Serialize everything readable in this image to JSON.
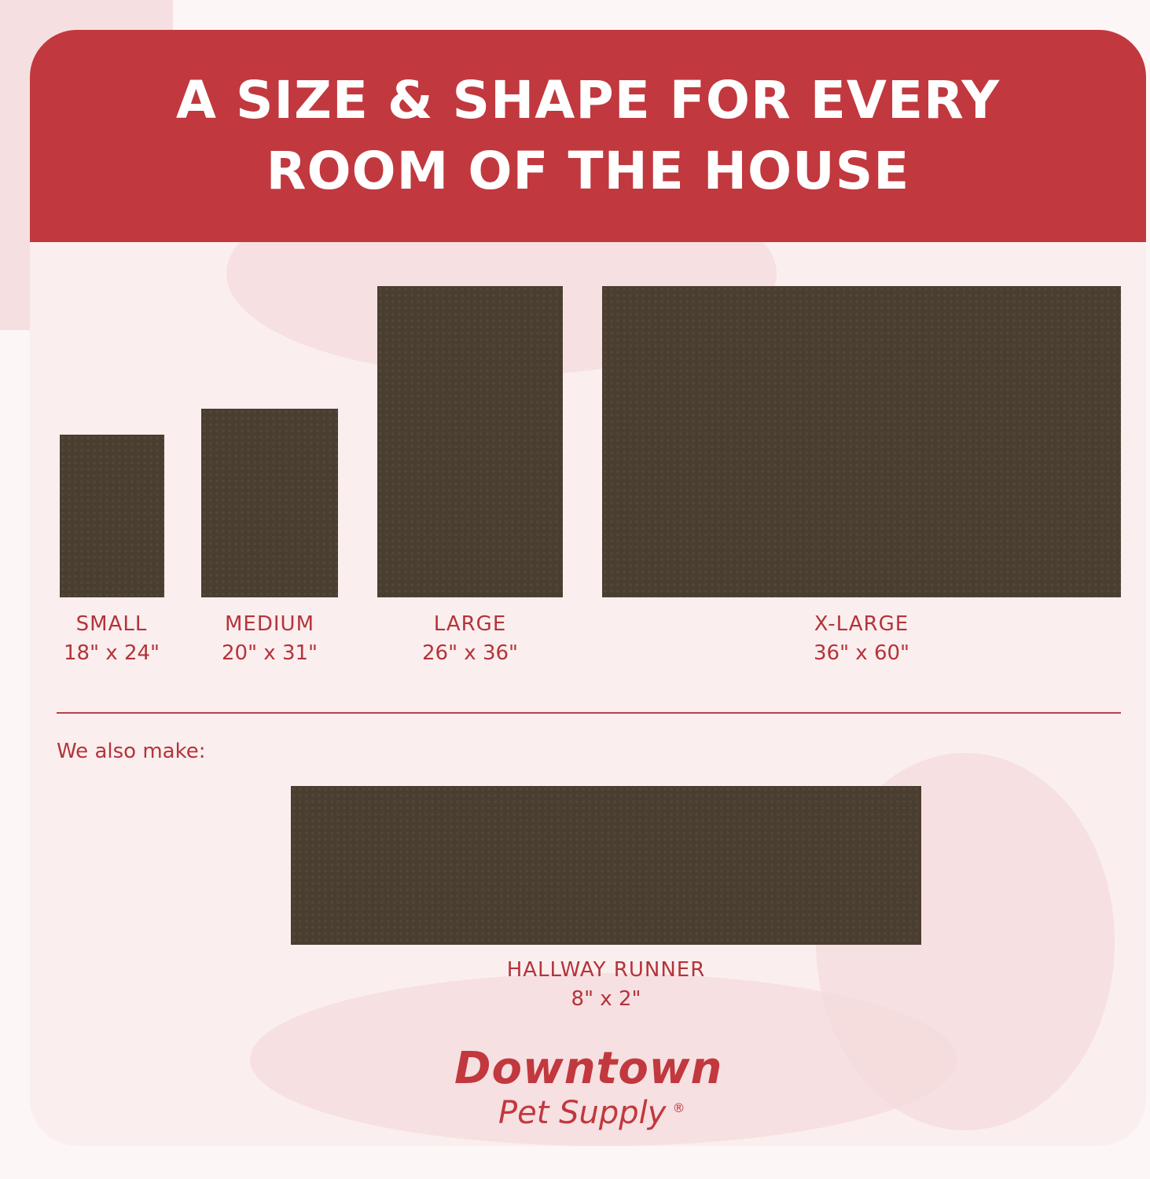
{
  "header": {
    "title_line1": "A SIZE & SHAPE FOR EVERY",
    "title_line2": "ROOM OF THE HOUSE"
  },
  "sizes": [
    {
      "name": "SMALL",
      "dims": "18\" x 24\""
    },
    {
      "name": "MEDIUM",
      "dims": "20\" x 31\""
    },
    {
      "name": "LARGE",
      "dims": "26\" x 36\""
    },
    {
      "name": "X-LARGE",
      "dims": "36\" x 60\""
    }
  ],
  "also": {
    "label": "We also make:",
    "name": "HALLWAY RUNNER",
    "dims": "8\" x 2\""
  },
  "logo": {
    "line1": "Downtown",
    "line2": "Pet Supply",
    "mark": "®"
  },
  "colors": {
    "accent": "#c1383e",
    "mat": "#4a3e31",
    "background": "#fbeeee"
  }
}
